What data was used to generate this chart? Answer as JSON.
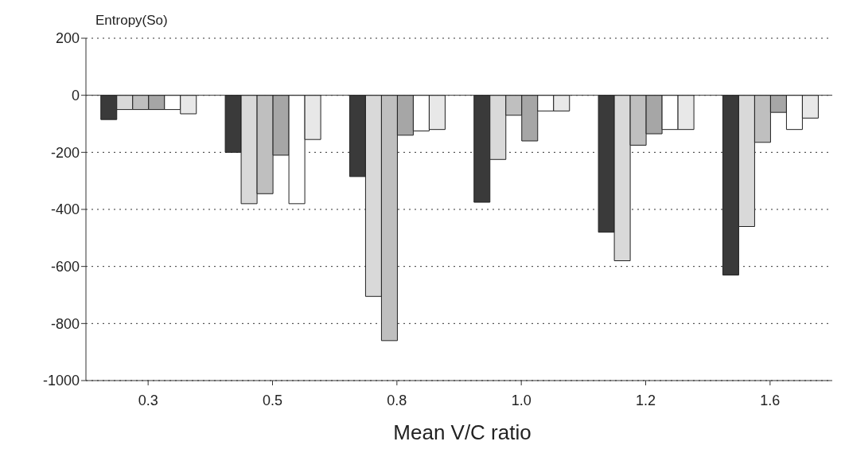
{
  "chart_data": {
    "type": "bar",
    "ylabel": "Entropy(So)",
    "xlabel": "Mean V/C ratio",
    "categories": [
      "0.3",
      "0.5",
      "0.8",
      "1.0",
      "1.2",
      "1.6"
    ],
    "series": [
      {
        "color": "#3a3a3a",
        "values": [
          -85,
          -200,
          -285,
          -375,
          -480,
          -630
        ]
      },
      {
        "color": "#d9d9d9",
        "values": [
          -50,
          -380,
          -705,
          -225,
          -580,
          -460
        ]
      },
      {
        "color": "#bfbfbf",
        "values": [
          -50,
          -345,
          -860,
          -70,
          -175,
          -165
        ]
      },
      {
        "color": "#a6a6a6",
        "values": [
          -50,
          -210,
          -140,
          -160,
          -135,
          -60
        ]
      },
      {
        "color": "#ffffff",
        "values": [
          -50,
          -380,
          -125,
          -55,
          -120,
          -120
        ]
      },
      {
        "color": "#e8e8e8",
        "values": [
          -65,
          -155,
          -120,
          -55,
          -120,
          -80
        ]
      }
    ],
    "ylim": [
      -1000,
      200
    ],
    "yticks": [
      -1000,
      -800,
      -600,
      -400,
      -200,
      0,
      200
    ],
    "grid": "y"
  }
}
